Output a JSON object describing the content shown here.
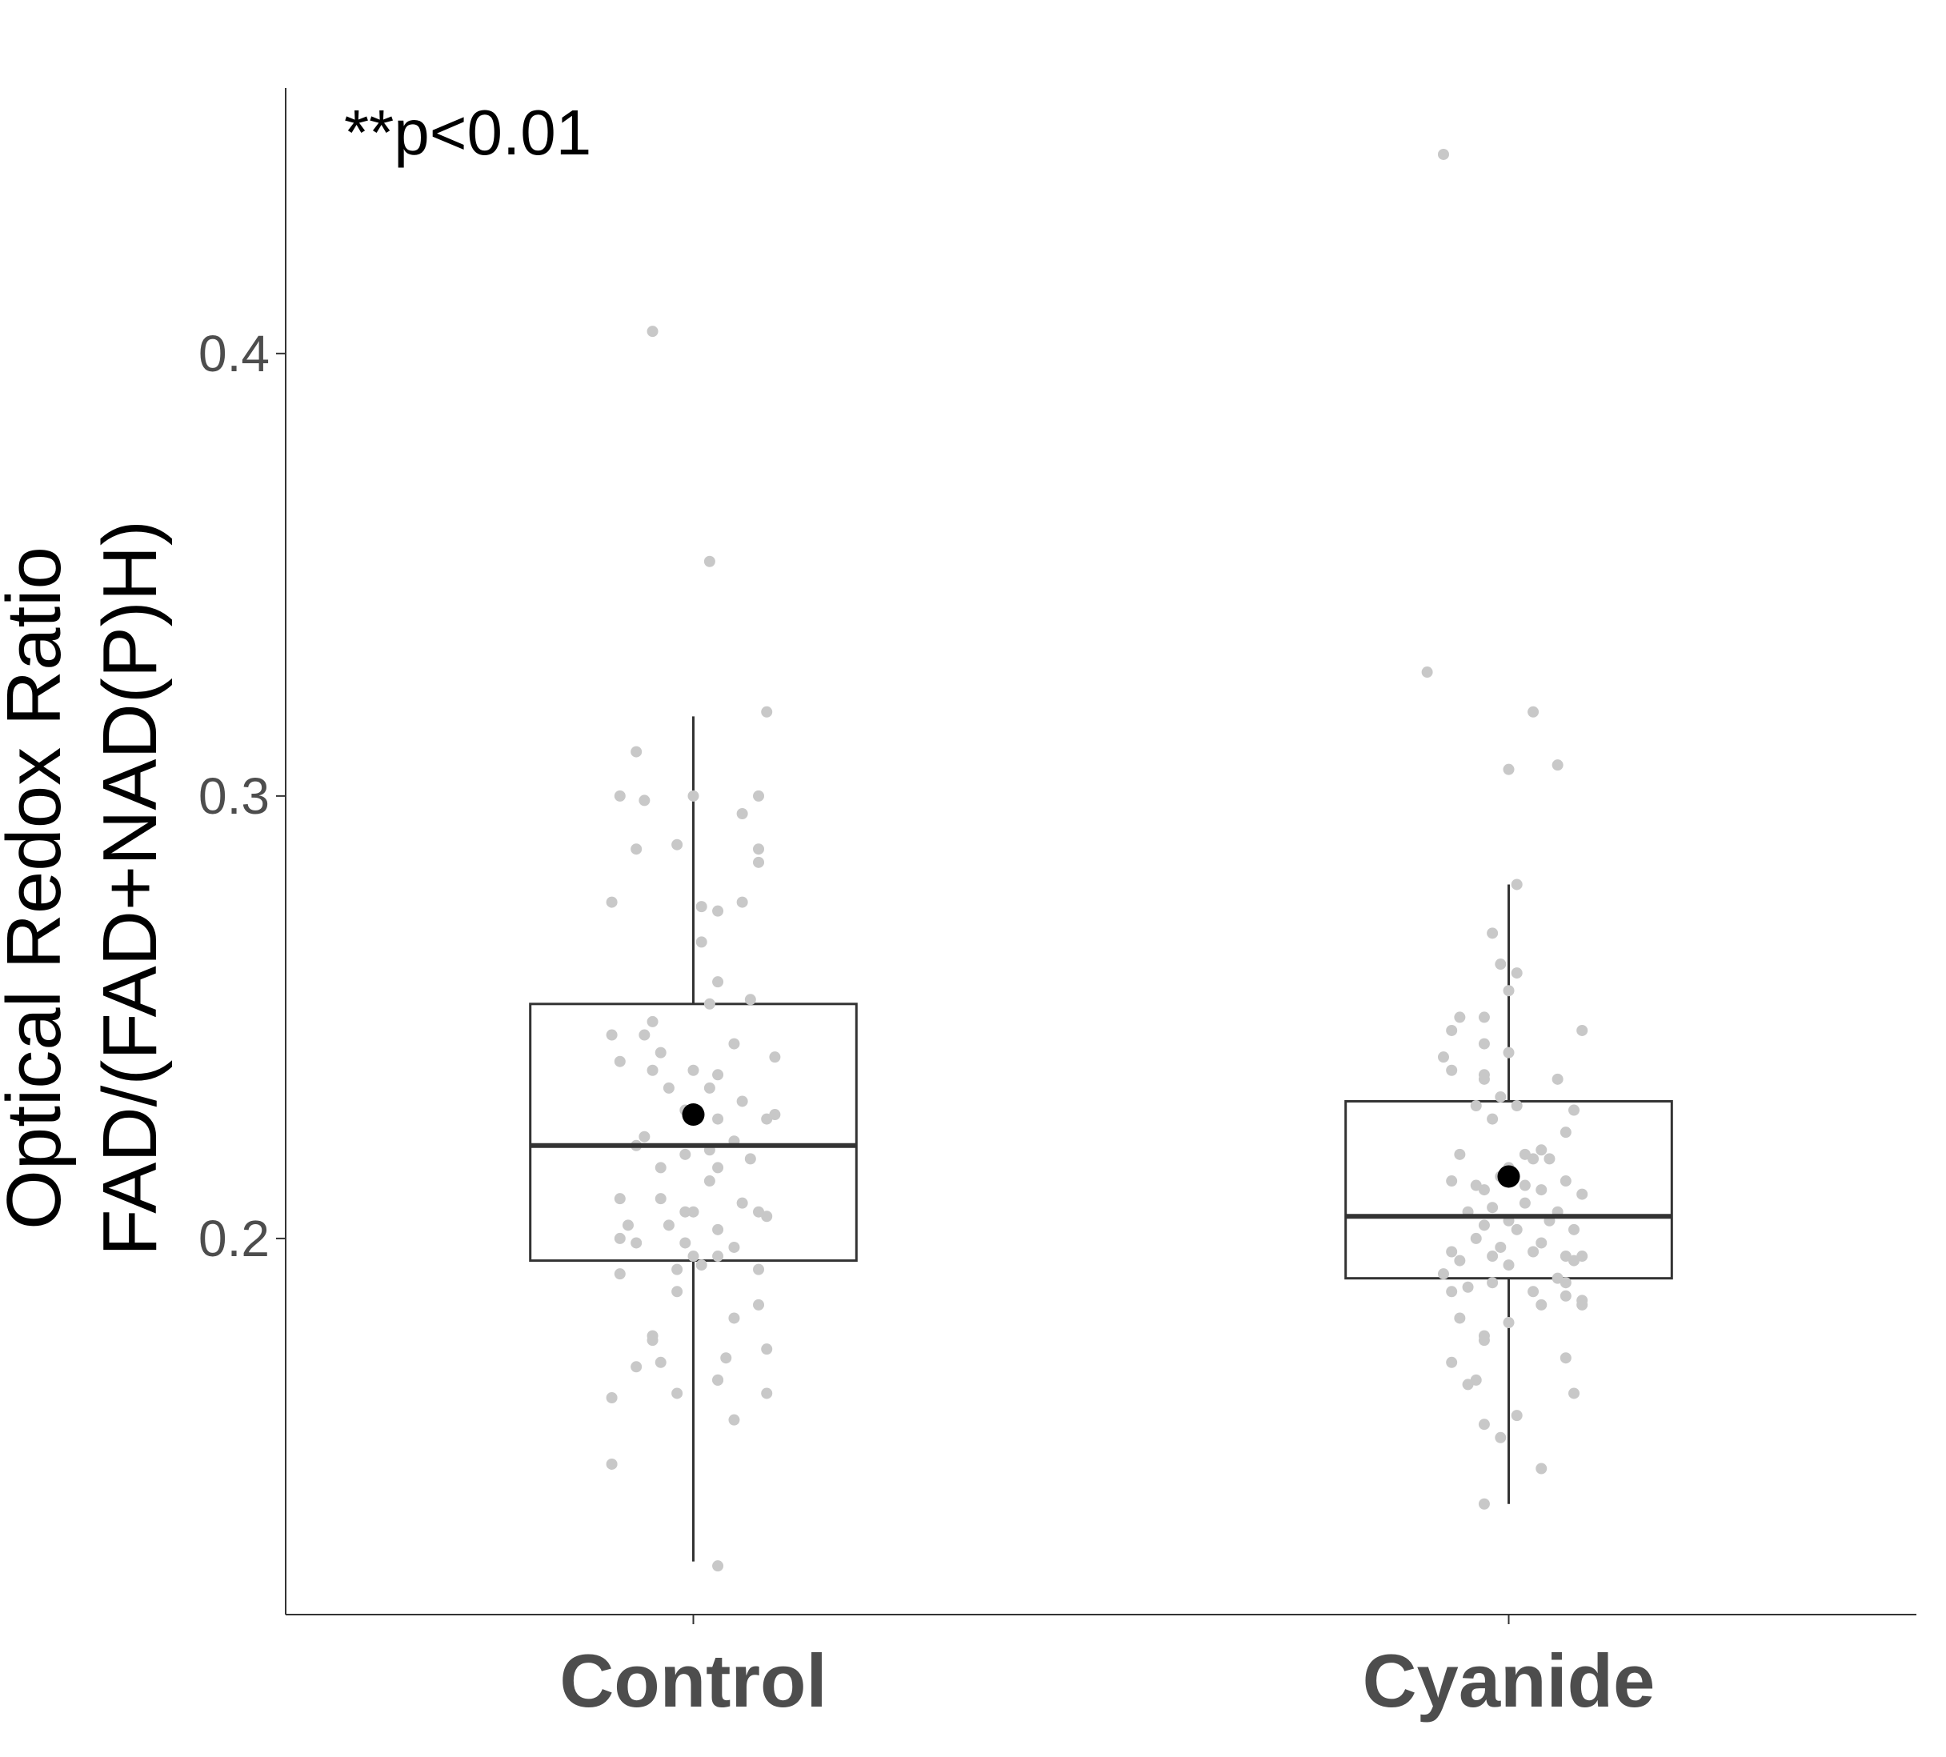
{
  "chart_data": {
    "type": "box",
    "ylabel_lines": [
      "Optical Redox Ratio",
      "FAD/(FAD+NAD(P)H)"
    ],
    "ylim": [
      0.115,
      0.46
    ],
    "yticks": [
      0.2,
      0.3,
      0.4
    ],
    "ytick_labels": [
      "0.2",
      "0.3",
      "0.4"
    ],
    "annotation": "**p<0.01",
    "grid": false,
    "legend": "none",
    "colors": {
      "box": "#333333",
      "jitter": "#c8c8c8",
      "mean": "#000000",
      "axis": "#333333"
    },
    "groups": [
      {
        "label": "Control",
        "box": {
          "whisker_low": 0.127,
          "q1": 0.195,
          "median": 0.221,
          "q3": 0.253,
          "whisker_high": 0.318
        },
        "mean": 0.228,
        "points": [
          [
            -0.05,
            0.405
          ],
          [
            0.02,
            0.353
          ],
          [
            0.09,
            0.319
          ],
          [
            -0.07,
            0.31
          ],
          [
            -0.09,
            0.3
          ],
          [
            -0.06,
            0.299
          ],
          [
            0,
            0.3
          ],
          [
            0.08,
            0.3
          ],
          [
            0.06,
            0.296
          ],
          [
            -0.07,
            0.288
          ],
          [
            -0.02,
            0.289
          ],
          [
            0.08,
            0.288
          ],
          [
            0.08,
            0.285
          ],
          [
            -0.1,
            0.276
          ],
          [
            0.01,
            0.275
          ],
          [
            0.03,
            0.274
          ],
          [
            0.06,
            0.276
          ],
          [
            0.01,
            0.267
          ],
          [
            0.03,
            0.258
          ],
          [
            0.02,
            0.253
          ],
          [
            0.07,
            0.254
          ],
          [
            -0.05,
            0.249
          ],
          [
            -0.1,
            0.246
          ],
          [
            -0.06,
            0.246
          ],
          [
            0.05,
            0.244
          ],
          [
            -0.04,
            0.242
          ],
          [
            -0.09,
            0.24
          ],
          [
            0.1,
            0.241
          ],
          [
            0,
            0.238
          ],
          [
            -0.05,
            0.238
          ],
          [
            0.03,
            0.237
          ],
          [
            -0.03,
            0.234
          ],
          [
            0.02,
            0.234
          ],
          [
            0.06,
            0.231
          ],
          [
            -0.01,
            0.229
          ],
          [
            0.03,
            0.227
          ],
          [
            0.1,
            0.228
          ],
          [
            0.09,
            0.227
          ],
          [
            -0.06,
            0.223
          ],
          [
            0.05,
            0.222
          ],
          [
            -0.07,
            0.221
          ],
          [
            0.02,
            0.22
          ],
          [
            -0.01,
            0.219
          ],
          [
            0.07,
            0.218
          ],
          [
            0.03,
            0.216
          ],
          [
            -0.04,
            0.216
          ],
          [
            0.02,
            0.213
          ],
          [
            -0.09,
            0.209
          ],
          [
            -0.04,
            0.209
          ],
          [
            0.06,
            0.208
          ],
          [
            -0.01,
            0.206
          ],
          [
            0,
            0.206
          ],
          [
            0.09,
            0.205
          ],
          [
            0.08,
            0.206
          ],
          [
            -0.03,
            0.203
          ],
          [
            -0.08,
            0.203
          ],
          [
            0.03,
            0.202
          ],
          [
            -0.07,
            0.199
          ],
          [
            -0.09,
            0.2
          ],
          [
            -0.01,
            0.199
          ],
          [
            0.05,
            0.198
          ],
          [
            0,
            0.196
          ],
          [
            0.03,
            0.196
          ],
          [
            0.01,
            0.194
          ],
          [
            -0.02,
            0.193
          ],
          [
            -0.09,
            0.192
          ],
          [
            0.08,
            0.193
          ],
          [
            -0.02,
            0.188
          ],
          [
            0.08,
            0.185
          ],
          [
            0.05,
            0.182
          ],
          [
            -0.05,
            0.178
          ],
          [
            -0.05,
            0.177
          ],
          [
            0.09,
            0.175
          ],
          [
            0.04,
            0.173
          ],
          [
            -0.07,
            0.171
          ],
          [
            -0.04,
            0.172
          ],
          [
            0.03,
            0.168
          ],
          [
            0.03,
            0.168
          ],
          [
            -0.02,
            0.165
          ],
          [
            0.09,
            0.165
          ],
          [
            -0.1,
            0.164
          ],
          [
            0.05,
            0.159
          ],
          [
            -0.1,
            0.149
          ],
          [
            0.03,
            0.126
          ]
        ]
      },
      {
        "label": "Cyanide",
        "box": {
          "whisker_low": 0.14,
          "q1": 0.191,
          "median": 0.205,
          "q3": 0.231,
          "whisker_high": 0.28
        },
        "mean": 0.214,
        "points": [
          [
            -0.08,
            0.445
          ],
          [
            -0.1,
            0.328
          ],
          [
            0.03,
            0.319
          ],
          [
            0.06,
            0.307
          ],
          [
            0,
            0.306
          ],
          [
            0.01,
            0.28
          ],
          [
            -0.02,
            0.269
          ],
          [
            -0.01,
            0.262
          ],
          [
            0.01,
            0.26
          ],
          [
            0,
            0.256
          ],
          [
            -0.06,
            0.25
          ],
          [
            -0.03,
            0.25
          ],
          [
            -0.07,
            0.247
          ],
          [
            0.09,
            0.247
          ],
          [
            -0.03,
            0.244
          ],
          [
            -0.08,
            0.241
          ],
          [
            0,
            0.242
          ],
          [
            -0.07,
            0.238
          ],
          [
            -0.03,
            0.237
          ],
          [
            -0.03,
            0.236
          ],
          [
            0.06,
            0.236
          ],
          [
            -0.01,
            0.232
          ],
          [
            -0.04,
            0.23
          ],
          [
            0.01,
            0.23
          ],
          [
            0.08,
            0.229
          ],
          [
            -0.02,
            0.227
          ],
          [
            0.07,
            0.224
          ],
          [
            -0.06,
            0.219
          ],
          [
            0.04,
            0.22
          ],
          [
            0.05,
            0.218
          ],
          [
            0.02,
            0.219
          ],
          [
            0.03,
            0.218
          ],
          [
            0,
            0.216
          ],
          [
            -0.01,
            0.214
          ],
          [
            -0.04,
            0.212
          ],
          [
            -0.07,
            0.213
          ],
          [
            0.07,
            0.213
          ],
          [
            0.02,
            0.212
          ],
          [
            -0.03,
            0.211
          ],
          [
            0.04,
            0.211
          ],
          [
            0.09,
            0.21
          ],
          [
            0.02,
            0.208
          ],
          [
            -0.02,
            0.207
          ],
          [
            -0.05,
            0.206
          ],
          [
            0.06,
            0.206
          ],
          [
            0.05,
            0.204
          ],
          [
            0,
            0.204
          ],
          [
            -0.03,
            0.203
          ],
          [
            0.01,
            0.202
          ],
          [
            0.08,
            0.202
          ],
          [
            -0.04,
            0.2
          ],
          [
            0.04,
            0.199
          ],
          [
            -0.01,
            0.198
          ],
          [
            -0.07,
            0.197
          ],
          [
            0.03,
            0.197
          ],
          [
            -0.02,
            0.196
          ],
          [
            -0.06,
            0.195
          ],
          [
            0.09,
            0.196
          ],
          [
            0.07,
            0.196
          ],
          [
            0.08,
            0.195
          ],
          [
            0,
            0.194
          ],
          [
            -0.08,
            0.192
          ],
          [
            0.06,
            0.191
          ],
          [
            -0.02,
            0.19
          ],
          [
            0.07,
            0.19
          ],
          [
            -0.05,
            0.189
          ],
          [
            0.03,
            0.188
          ],
          [
            -0.07,
            0.188
          ],
          [
            0.07,
            0.187
          ],
          [
            0.09,
            0.186
          ],
          [
            0.09,
            0.185
          ],
          [
            0.04,
            0.185
          ],
          [
            -0.06,
            0.182
          ],
          [
            0,
            0.181
          ],
          [
            -0.03,
            0.178
          ],
          [
            -0.03,
            0.177
          ],
          [
            0.07,
            0.173
          ],
          [
            -0.07,
            0.172
          ],
          [
            -0.04,
            0.168
          ],
          [
            -0.05,
            0.167
          ],
          [
            0.08,
            0.165
          ],
          [
            0.01,
            0.16
          ],
          [
            -0.03,
            0.158
          ],
          [
            -0.01,
            0.155
          ],
          [
            0.04,
            0.148
          ],
          [
            -0.03,
            0.14
          ]
        ]
      }
    ]
  }
}
